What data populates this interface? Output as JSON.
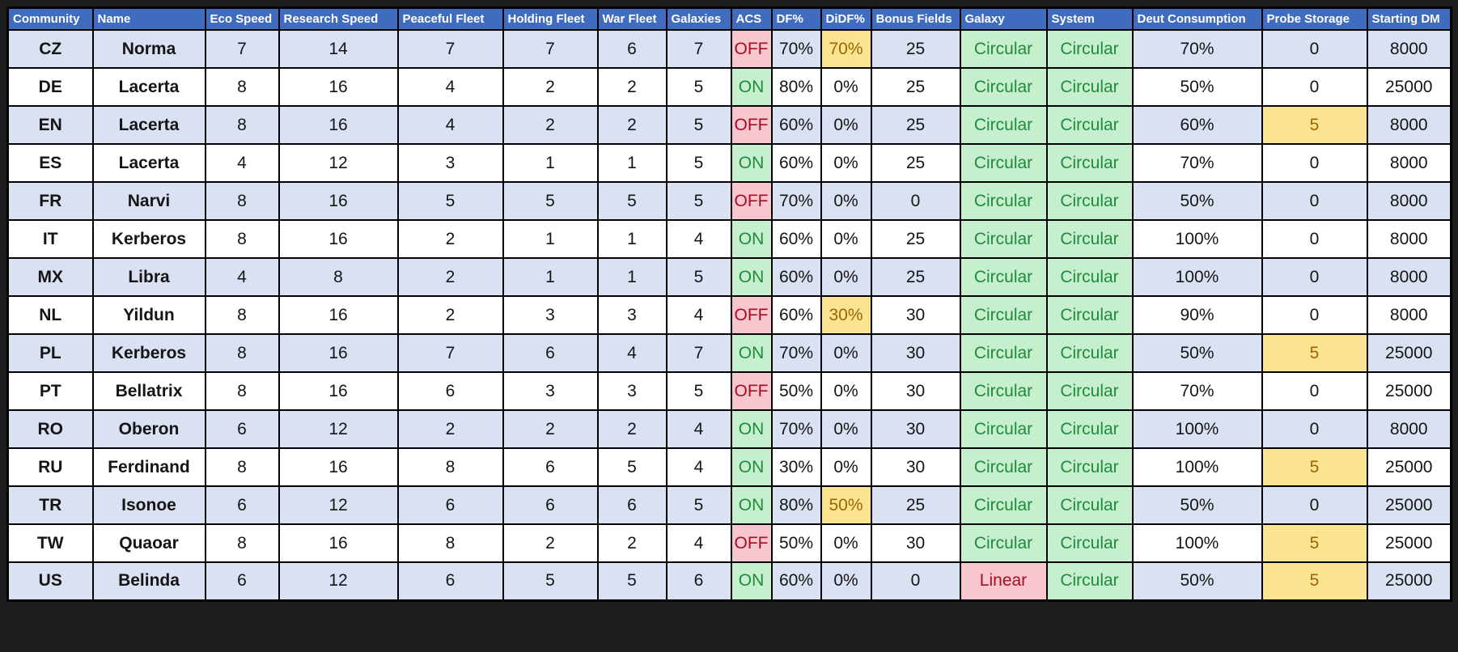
{
  "colors": {
    "page_bg": "#1d1d1d",
    "header_bg": "#3f6cbf",
    "header_text": "#ffffff",
    "row_stripe": "#d9e1f2",
    "row_plain": "#ffffff",
    "good_bg": "#c6efce",
    "good_text": "#1e8b3d",
    "bad_bg": "#f8c6ce",
    "bad_text": "#a50d21",
    "warn_bg": "#fbe491",
    "warn_text": "#9c6500",
    "grid_border": "#000000"
  },
  "table": {
    "columns": [
      {
        "key": "community",
        "label": "Community"
      },
      {
        "key": "name",
        "label": "Name"
      },
      {
        "key": "eco_speed",
        "label": "Eco Speed"
      },
      {
        "key": "research_speed",
        "label": "Research Speed"
      },
      {
        "key": "peaceful_fleet",
        "label": "Peaceful Fleet"
      },
      {
        "key": "holding_fleet",
        "label": "Holding Fleet"
      },
      {
        "key": "war_fleet",
        "label": "War Fleet"
      },
      {
        "key": "galaxies",
        "label": "Galaxies"
      },
      {
        "key": "acs",
        "label": "ACS"
      },
      {
        "key": "df",
        "label": "DF%"
      },
      {
        "key": "didf",
        "label": "DiDF%"
      },
      {
        "key": "bonus_fields",
        "label": "Bonus Fields"
      },
      {
        "key": "galaxy",
        "label": "Galaxy"
      },
      {
        "key": "system",
        "label": "System"
      },
      {
        "key": "deut_consumption",
        "label": "Deut Consumption"
      },
      {
        "key": "probe_storage",
        "label": "Probe Storage"
      },
      {
        "key": "starting_dm",
        "label": "Starting DM"
      }
    ],
    "rows": [
      {
        "community": "CZ",
        "name": "Norma",
        "eco_speed": "7",
        "research_speed": "14",
        "peaceful_fleet": "7",
        "holding_fleet": "7",
        "war_fleet": "6",
        "galaxies": "7",
        "acs": "OFF",
        "df": "70%",
        "didf": "70%",
        "bonus_fields": "25",
        "galaxy": "Circular",
        "system": "Circular",
        "deut_consumption": "70%",
        "probe_storage": "0",
        "starting_dm": "8000"
      },
      {
        "community": "DE",
        "name": "Lacerta",
        "eco_speed": "8",
        "research_speed": "16",
        "peaceful_fleet": "4",
        "holding_fleet": "2",
        "war_fleet": "2",
        "galaxies": "5",
        "acs": "ON",
        "df": "80%",
        "didf": "0%",
        "bonus_fields": "25",
        "galaxy": "Circular",
        "system": "Circular",
        "deut_consumption": "50%",
        "probe_storage": "0",
        "starting_dm": "25000"
      },
      {
        "community": "EN",
        "name": "Lacerta",
        "eco_speed": "8",
        "research_speed": "16",
        "peaceful_fleet": "4",
        "holding_fleet": "2",
        "war_fleet": "2",
        "galaxies": "5",
        "acs": "OFF",
        "df": "60%",
        "didf": "0%",
        "bonus_fields": "25",
        "galaxy": "Circular",
        "system": "Circular",
        "deut_consumption": "60%",
        "probe_storage": "5",
        "starting_dm": "8000"
      },
      {
        "community": "ES",
        "name": "Lacerta",
        "eco_speed": "4",
        "research_speed": "12",
        "peaceful_fleet": "3",
        "holding_fleet": "1",
        "war_fleet": "1",
        "galaxies": "5",
        "acs": "ON",
        "df": "60%",
        "didf": "0%",
        "bonus_fields": "25",
        "galaxy": "Circular",
        "system": "Circular",
        "deut_consumption": "70%",
        "probe_storage": "0",
        "starting_dm": "8000"
      },
      {
        "community": "FR",
        "name": "Narvi",
        "eco_speed": "8",
        "research_speed": "16",
        "peaceful_fleet": "5",
        "holding_fleet": "5",
        "war_fleet": "5",
        "galaxies": "5",
        "acs": "OFF",
        "df": "70%",
        "didf": "0%",
        "bonus_fields": "0",
        "galaxy": "Circular",
        "system": "Circular",
        "deut_consumption": "50%",
        "probe_storage": "0",
        "starting_dm": "8000"
      },
      {
        "community": "IT",
        "name": "Kerberos",
        "eco_speed": "8",
        "research_speed": "16",
        "peaceful_fleet": "2",
        "holding_fleet": "1",
        "war_fleet": "1",
        "galaxies": "4",
        "acs": "ON",
        "df": "60%",
        "didf": "0%",
        "bonus_fields": "25",
        "galaxy": "Circular",
        "system": "Circular",
        "deut_consumption": "100%",
        "probe_storage": "0",
        "starting_dm": "8000"
      },
      {
        "community": "MX",
        "name": "Libra",
        "eco_speed": "4",
        "research_speed": "8",
        "peaceful_fleet": "2",
        "holding_fleet": "1",
        "war_fleet": "1",
        "galaxies": "5",
        "acs": "ON",
        "df": "60%",
        "didf": "0%",
        "bonus_fields": "25",
        "galaxy": "Circular",
        "system": "Circular",
        "deut_consumption": "100%",
        "probe_storage": "0",
        "starting_dm": "8000"
      },
      {
        "community": "NL",
        "name": "Yildun",
        "eco_speed": "8",
        "research_speed": "16",
        "peaceful_fleet": "2",
        "holding_fleet": "3",
        "war_fleet": "3",
        "galaxies": "4",
        "acs": "OFF",
        "df": "60%",
        "didf": "30%",
        "bonus_fields": "30",
        "galaxy": "Circular",
        "system": "Circular",
        "deut_consumption": "90%",
        "probe_storage": "0",
        "starting_dm": "8000"
      },
      {
        "community": "PL",
        "name": "Kerberos",
        "eco_speed": "8",
        "research_speed": "16",
        "peaceful_fleet": "7",
        "holding_fleet": "6",
        "war_fleet": "4",
        "galaxies": "7",
        "acs": "ON",
        "df": "70%",
        "didf": "0%",
        "bonus_fields": "30",
        "galaxy": "Circular",
        "system": "Circular",
        "deut_consumption": "50%",
        "probe_storage": "5",
        "starting_dm": "25000"
      },
      {
        "community": "PT",
        "name": "Bellatrix",
        "eco_speed": "8",
        "research_speed": "16",
        "peaceful_fleet": "6",
        "holding_fleet": "3",
        "war_fleet": "3",
        "galaxies": "5",
        "acs": "OFF",
        "df": "50%",
        "didf": "0%",
        "bonus_fields": "30",
        "galaxy": "Circular",
        "system": "Circular",
        "deut_consumption": "70%",
        "probe_storage": "0",
        "starting_dm": "25000"
      },
      {
        "community": "RO",
        "name": "Oberon",
        "eco_speed": "6",
        "research_speed": "12",
        "peaceful_fleet": "2",
        "holding_fleet": "2",
        "war_fleet": "2",
        "galaxies": "4",
        "acs": "ON",
        "df": "70%",
        "didf": "0%",
        "bonus_fields": "30",
        "galaxy": "Circular",
        "system": "Circular",
        "deut_consumption": "100%",
        "probe_storage": "0",
        "starting_dm": "8000"
      },
      {
        "community": "RU",
        "name": "Ferdinand",
        "eco_speed": "8",
        "research_speed": "16",
        "peaceful_fleet": "8",
        "holding_fleet": "6",
        "war_fleet": "5",
        "galaxies": "4",
        "acs": "ON",
        "df": "30%",
        "didf": "0%",
        "bonus_fields": "30",
        "galaxy": "Circular",
        "system": "Circular",
        "deut_consumption": "100%",
        "probe_storage": "5",
        "starting_dm": "25000"
      },
      {
        "community": "TR",
        "name": "Isonoe",
        "eco_speed": "6",
        "research_speed": "12",
        "peaceful_fleet": "6",
        "holding_fleet": "6",
        "war_fleet": "6",
        "galaxies": "5",
        "acs": "ON",
        "df": "80%",
        "didf": "50%",
        "bonus_fields": "25",
        "galaxy": "Circular",
        "system": "Circular",
        "deut_consumption": "50%",
        "probe_storage": "0",
        "starting_dm": "25000"
      },
      {
        "community": "TW",
        "name": "Quaoar",
        "eco_speed": "8",
        "research_speed": "16",
        "peaceful_fleet": "8",
        "holding_fleet": "2",
        "war_fleet": "2",
        "galaxies": "4",
        "acs": "OFF",
        "df": "50%",
        "didf": "0%",
        "bonus_fields": "30",
        "galaxy": "Circular",
        "system": "Circular",
        "deut_consumption": "100%",
        "probe_storage": "5",
        "starting_dm": "25000"
      },
      {
        "community": "US",
        "name": "Belinda",
        "eco_speed": "6",
        "research_speed": "12",
        "peaceful_fleet": "6",
        "holding_fleet": "5",
        "war_fleet": "5",
        "galaxies": "6",
        "acs": "ON",
        "df": "60%",
        "didf": "0%",
        "bonus_fields": "0",
        "galaxy": "Linear",
        "system": "Circular",
        "deut_consumption": "50%",
        "probe_storage": "5",
        "starting_dm": "25000"
      }
    ]
  }
}
